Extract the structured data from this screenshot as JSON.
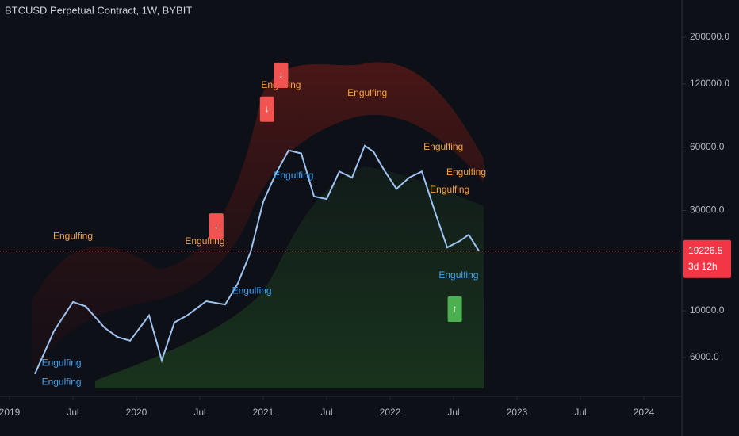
{
  "chart_data": {
    "type": "line",
    "title": "BTCUSD Perpetual Contract, 1W, BYBIT",
    "log_scale": true,
    "grid": false,
    "background": "#0e1018",
    "xlim": [
      2018.925,
      2024.3
    ],
    "ylim": [
      4270,
      301000
    ],
    "xticks": [
      {
        "value": 2019,
        "label": "2019"
      },
      {
        "value": 2019.5,
        "label": "Jul"
      },
      {
        "value": 2020,
        "label": "2020"
      },
      {
        "value": 2020.5,
        "label": "Jul"
      },
      {
        "value": 2021,
        "label": "2021"
      },
      {
        "value": 2021.5,
        "label": "Jul"
      },
      {
        "value": 2022,
        "label": "2022"
      },
      {
        "value": 2022.5,
        "label": "Jul"
      },
      {
        "value": 2023,
        "label": "2023"
      },
      {
        "value": 2023.5,
        "label": "Jul"
      },
      {
        "value": 2024,
        "label": "2024"
      }
    ],
    "yticks": [
      {
        "value": 200000,
        "label": "200000.0"
      },
      {
        "value": 120000,
        "label": "120000.0"
      },
      {
        "value": 60000,
        "label": "60000.0"
      },
      {
        "value": 30000,
        "label": "30000.0"
      },
      {
        "value": 10000,
        "label": "10000.0"
      },
      {
        "value": 6000,
        "label": "6000.0"
      }
    ],
    "series": [
      {
        "color": "#9fc3f0",
        "x": [
          2019.2,
          2019.35,
          2019.5,
          2019.6,
          2019.75,
          2019.85,
          2019.95,
          2020.1,
          2020.2,
          2020.3,
          2020.4,
          2020.55,
          2020.7,
          2020.8,
          2020.9,
          2021.0,
          2021.1,
          2021.2,
          2021.3,
          2021.4,
          2021.5,
          2021.6,
          2021.7,
          2021.8,
          2021.87,
          2021.95,
          2022.05,
          2022.15,
          2022.25,
          2022.35,
          2022.45,
          2022.55,
          2022.62,
          2022.7
        ],
        "values": [
          5000,
          8000,
          11000,
          10500,
          8300,
          7500,
          7200,
          9500,
          5800,
          8800,
          9500,
          11100,
          10700,
          13500,
          19000,
          33000,
          45000,
          58000,
          56000,
          35000,
          34000,
          46000,
          43000,
          61000,
          57000,
          47000,
          38000,
          43000,
          46000,
          30000,
          20000,
          21500,
          23000,
          19226.5
        ]
      }
    ],
    "last_price": 19226.5,
    "countdown": "3d 12h",
    "annotations": [
      {
        "text": "Engulfing",
        "x": 2019.5,
        "y": 22600,
        "color": "#f7a03c"
      },
      {
        "text": "Engulfing",
        "x": 2020.54,
        "y": 21300,
        "color": "#f7a03c"
      },
      {
        "text": "Engulfing",
        "x": 2021.14,
        "y": 118000,
        "color": "#f7a03c"
      },
      {
        "text": "Engulfing",
        "x": 2021.82,
        "y": 108000,
        "color": "#f7a03c"
      },
      {
        "text": "Engulfing",
        "x": 2022.42,
        "y": 60000,
        "color": "#f7a03c"
      },
      {
        "text": "Engulfing",
        "x": 2022.6,
        "y": 45300,
        "color": "#f7a03c"
      },
      {
        "text": "Engulfing",
        "x": 2022.47,
        "y": 37500,
        "color": "#f7a03c"
      },
      {
        "text": "Engulfing",
        "x": 2019.41,
        "y": 5630,
        "color": "#42a5f5"
      },
      {
        "text": "Engulfing",
        "x": 2019.41,
        "y": 4570,
        "color": "#42a5f5"
      },
      {
        "text": "Engulfing",
        "x": 2020.91,
        "y": 12400,
        "color": "#42a5f5"
      },
      {
        "text": "Engulfing",
        "x": 2021.24,
        "y": 43900,
        "color": "#42a5f5"
      },
      {
        "text": "Engulfing",
        "x": 2022.54,
        "y": 14700,
        "color": "#42a5f5"
      },
      {
        "text": "↓",
        "x": 2021.14,
        "y": 132000,
        "color": "#f05350"
      },
      {
        "text": "↓",
        "x": 2021.03,
        "y": 91000,
        "color": "#f05350"
      },
      {
        "text": "↓",
        "x": 2020.63,
        "y": 25300,
        "color": "#f05350"
      },
      {
        "text": "↑",
        "x": 2022.51,
        "y": 10180,
        "color": "#4caf50"
      }
    ]
  }
}
